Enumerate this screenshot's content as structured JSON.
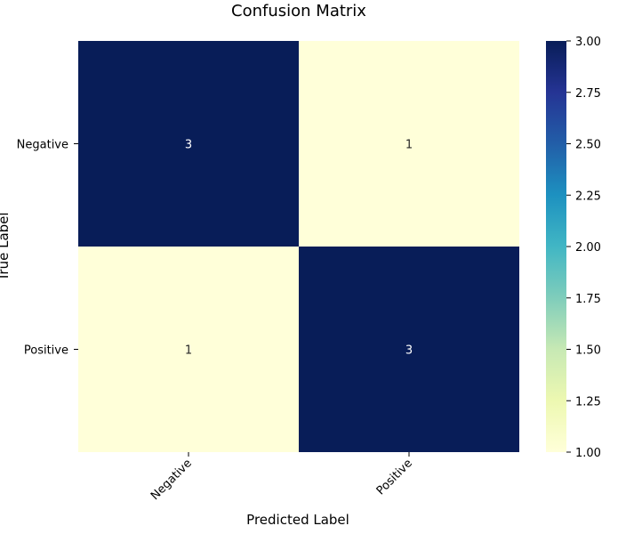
{
  "chart_data": {
    "type": "heatmap",
    "title": "Confusion Matrix",
    "xlabel": "Predicted Label",
    "ylabel": "True Label",
    "x_categories": [
      "Negative",
      "Positive"
    ],
    "y_categories": [
      "Negative",
      "Positive"
    ],
    "values": [
      [
        3,
        1
      ],
      [
        1,
        3
      ]
    ],
    "annotations": [
      "3",
      "1",
      "1",
      "3"
    ],
    "colormap": "YlGnBu",
    "colorbar": {
      "min": 1.0,
      "max": 3.0,
      "ticks": [
        "1.00",
        "1.25",
        "1.50",
        "1.75",
        "2.00",
        "2.25",
        "2.50",
        "2.75",
        "3.00"
      ],
      "tick_values": [
        1.0,
        1.25,
        1.5,
        1.75,
        2.0,
        2.25,
        2.5,
        2.75,
        3.0
      ]
    },
    "colors": {
      "high": "#081d58",
      "low": "#ffffd9",
      "text_on_dark": "#ffffff",
      "text_on_light": "#262626"
    },
    "grid": false
  }
}
